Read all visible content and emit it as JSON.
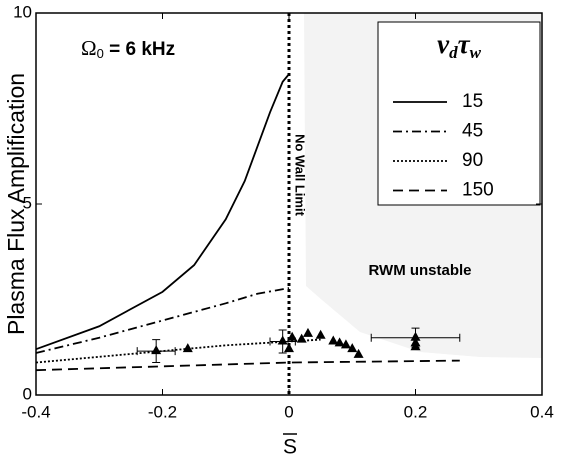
{
  "chart_data": {
    "type": "line",
    "xlabel": "S",
    "ylabel": "Plasma Flux Amplification",
    "xlim": [
      -0.4,
      0.4
    ],
    "ylim": [
      0,
      10
    ],
    "xticks": [
      -0.4,
      -0.2,
      0,
      0.2,
      0.4
    ],
    "yticks": [
      0,
      5,
      10
    ],
    "annotation": [
      "Ω",
      "0",
      " = 6 kHz"
    ],
    "legend_title": [
      "ν",
      "d",
      "τ",
      "w"
    ],
    "vline": {
      "x": 0,
      "label": "No Wall Limit"
    },
    "region_label": "RWM unstable",
    "series": [
      {
        "name": "15",
        "color": "#000000",
        "dash": "solid",
        "x": [
          -0.4,
          -0.3,
          -0.2,
          -0.15,
          -0.1,
          -0.07,
          -0.05,
          -0.03,
          -0.01,
          0
        ],
        "values": [
          1.2,
          1.8,
          2.7,
          3.4,
          4.6,
          5.6,
          6.5,
          7.4,
          8.2,
          8.4
        ]
      },
      {
        "name": "45",
        "color": "#000000",
        "dash": "dashdot",
        "x": [
          -0.4,
          -0.3,
          -0.2,
          -0.1,
          -0.05,
          0
        ],
        "values": [
          1.1,
          1.5,
          1.95,
          2.4,
          2.65,
          2.8
        ]
      },
      {
        "name": "90",
        "color": "#000000",
        "dash": "dotted",
        "x": [
          -0.4,
          -0.3,
          -0.2,
          -0.1,
          0,
          0.05
        ],
        "values": [
          0.85,
          1.0,
          1.15,
          1.3,
          1.4,
          1.45
        ]
      },
      {
        "name": "150",
        "color": "#000000",
        "dash": "dashed",
        "x": [
          -0.4,
          -0.2,
          0,
          0.27
        ],
        "values": [
          0.65,
          0.75,
          0.85,
          0.9
        ]
      }
    ],
    "points": {
      "type": "scatter",
      "color": "#000000",
      "x": [
        -0.21,
        -0.16,
        -0.01,
        0,
        0.005,
        0.02,
        0.03,
        0.05,
        0.07,
        0.08,
        0.09,
        0.1,
        0.11,
        0.2,
        0.2,
        0.2
      ],
      "values": [
        1.15,
        1.2,
        1.4,
        1.2,
        1.5,
        1.45,
        1.6,
        1.55,
        1.4,
        1.35,
        1.3,
        1.2,
        1.05,
        1.5,
        1.35,
        1.25
      ],
      "xerr": [
        0.03,
        null,
        0.02,
        null,
        null,
        null,
        null,
        null,
        null,
        null,
        null,
        null,
        null,
        0.07,
        null,
        null
      ],
      "yerr": [
        0.3,
        null,
        0.3,
        null,
        null,
        null,
        null,
        null,
        null,
        null,
        null,
        null,
        null,
        0.25,
        null,
        null
      ]
    }
  }
}
